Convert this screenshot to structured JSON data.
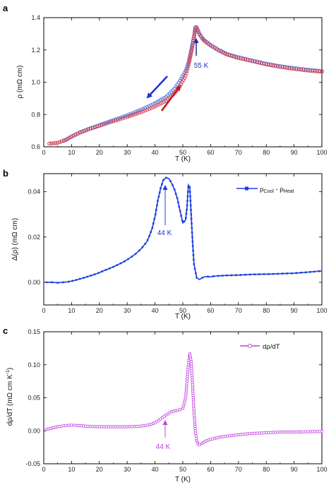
{
  "chart_data": [
    {
      "panel_label": "a",
      "type": "scatter",
      "xlabel": "T (K)",
      "ylabel": "ρ (mΩ cm)",
      "xlim": [
        0,
        100
      ],
      "ylim": [
        0.6,
        1.4
      ],
      "xticks": [
        0,
        10,
        20,
        30,
        40,
        50,
        60,
        70,
        80,
        90,
        100
      ],
      "yticks": [
        0.6,
        0.8,
        1.0,
        1.2,
        1.4
      ],
      "series": [
        {
          "color": "#4a6ee0",
          "marker": "open-circle",
          "x": [
            2,
            5,
            8,
            10,
            13,
            16,
            20,
            25,
            30,
            35,
            40,
            44,
            47,
            49,
            51,
            52,
            53,
            54,
            54.5,
            55,
            56,
            57,
            58,
            60,
            63,
            66,
            70,
            75,
            80,
            85,
            90,
            95,
            100
          ],
          "y": [
            0.62,
            0.625,
            0.645,
            0.665,
            0.69,
            0.71,
            0.735,
            0.765,
            0.795,
            0.83,
            0.87,
            0.91,
            0.96,
            1.01,
            1.07,
            1.12,
            1.2,
            1.285,
            1.34,
            1.34,
            1.3,
            1.275,
            1.258,
            1.232,
            1.2,
            1.175,
            1.155,
            1.135,
            1.115,
            1.1,
            1.088,
            1.078,
            1.07
          ]
        },
        {
          "color": "#d9404a",
          "marker": "open-circle",
          "x": [
            2,
            5,
            8,
            10,
            13,
            16,
            20,
            25,
            30,
            35,
            40,
            44,
            47,
            49,
            51,
            52,
            53,
            54,
            54.5,
            55,
            56,
            57,
            58,
            60,
            63,
            66,
            70,
            75,
            80,
            85,
            90,
            95,
            100
          ],
          "y": [
            0.62,
            0.625,
            0.642,
            0.662,
            0.687,
            0.707,
            0.73,
            0.758,
            0.785,
            0.815,
            0.85,
            0.885,
            0.93,
            0.975,
            1.04,
            1.1,
            1.18,
            1.27,
            1.335,
            1.335,
            1.295,
            1.27,
            1.252,
            1.226,
            1.195,
            1.17,
            1.15,
            1.13,
            1.11,
            1.095,
            1.082,
            1.072,
            1.065
          ]
        }
      ],
      "annotations": [
        {
          "text": "55 K",
          "x": 55,
          "y": 1.2,
          "color": "#1f2fd0"
        }
      ]
    },
    {
      "panel_label": "b",
      "type": "line",
      "xlabel": "T (K)",
      "ylabel": "Δ(ρ) (mΩ cm)",
      "xlim": [
        0,
        100
      ],
      "ylim": [
        -0.01,
        0.048
      ],
      "xticks": [
        0,
        10,
        20,
        30,
        40,
        50,
        60,
        70,
        80,
        90,
        100
      ],
      "yticks": [
        0.0,
        0.02,
        0.04
      ],
      "series": [
        {
          "legend_main": "ρ",
          "legend_sub1": "Cool",
          "legend_mid": " - ρ",
          "legend_sub2": "Heat",
          "color": "#1a3fe0",
          "x": [
            1,
            3,
            5,
            7,
            9,
            11,
            13,
            15,
            17,
            19,
            21,
            23,
            25,
            27,
            29,
            31,
            33,
            35,
            37,
            38,
            39,
            40,
            41,
            42,
            43,
            44,
            45,
            46,
            47,
            48,
            49,
            50,
            51,
            51.5,
            52,
            52.5,
            53,
            53.5,
            54,
            55,
            56,
            57,
            58,
            60,
            62,
            65,
            70,
            75,
            80,
            85,
            90,
            95,
            98,
            100
          ],
          "y": [
            0.0,
            0.0,
            -0.0002,
            0.0,
            0.0003,
            0.0008,
            0.0015,
            0.0022,
            0.003,
            0.0038,
            0.0048,
            0.0058,
            0.0068,
            0.008,
            0.0092,
            0.0108,
            0.0125,
            0.0148,
            0.0178,
            0.0205,
            0.024,
            0.029,
            0.036,
            0.0415,
            0.0452,
            0.0462,
            0.0458,
            0.0438,
            0.041,
            0.0372,
            0.0315,
            0.0262,
            0.0275,
            0.033,
            0.043,
            0.042,
            0.03,
            0.018,
            0.008,
            0.002,
            0.0012,
            0.002,
            0.0025,
            0.0025,
            0.0028,
            0.003,
            0.0032,
            0.0035,
            0.0036,
            0.0038,
            0.004,
            0.0045,
            0.0048,
            0.005
          ]
        }
      ],
      "annotations": [
        {
          "text": "44 K",
          "x": 44,
          "y": 0.027,
          "color": "#1f2fd0"
        }
      ]
    },
    {
      "panel_label": "c",
      "type": "line",
      "xlabel": "T (K)",
      "ylabel_main": "dρ/dT (mΩ cm K",
      "ylabel_sup": "-1",
      "ylabel_end": ")",
      "xlim": [
        0,
        100
      ],
      "ylim": [
        -0.05,
        0.15
      ],
      "xticks": [
        0,
        10,
        20,
        30,
        40,
        50,
        60,
        70,
        80,
        90,
        100
      ],
      "yticks": [
        -0.05,
        0.0,
        0.05,
        0.1,
        0.15
      ],
      "series": [
        {
          "name": "dρ/dT",
          "color": "#c040e0",
          "x": [
            1,
            3,
            5,
            8,
            10,
            12,
            15,
            20,
            25,
            30,
            35,
            38,
            40,
            42,
            44,
            46,
            48,
            49,
            50,
            51,
            51.5,
            52,
            52.5,
            53,
            53.5,
            54,
            54.5,
            55,
            55.5,
            56,
            57,
            58,
            60,
            63,
            66,
            70,
            75,
            80,
            85,
            90,
            95,
            100
          ],
          "y": [
            0.002,
            0.004,
            0.006,
            0.008,
            0.0085,
            0.008,
            0.007,
            0.006,
            0.006,
            0.006,
            0.007,
            0.009,
            0.012,
            0.018,
            0.024,
            0.029,
            0.031,
            0.032,
            0.034,
            0.05,
            0.075,
            0.1,
            0.117,
            0.105,
            0.07,
            0.03,
            0.0,
            -0.015,
            -0.02,
            -0.021,
            -0.019,
            -0.016,
            -0.013,
            -0.01,
            -0.008,
            -0.006,
            -0.004,
            -0.003,
            -0.002,
            -0.002,
            -0.0015,
            -0.001
          ]
        }
      ],
      "annotations": [
        {
          "text": "44 K",
          "x": 44,
          "y": -0.027,
          "color": "#c040e0"
        }
      ]
    }
  ]
}
